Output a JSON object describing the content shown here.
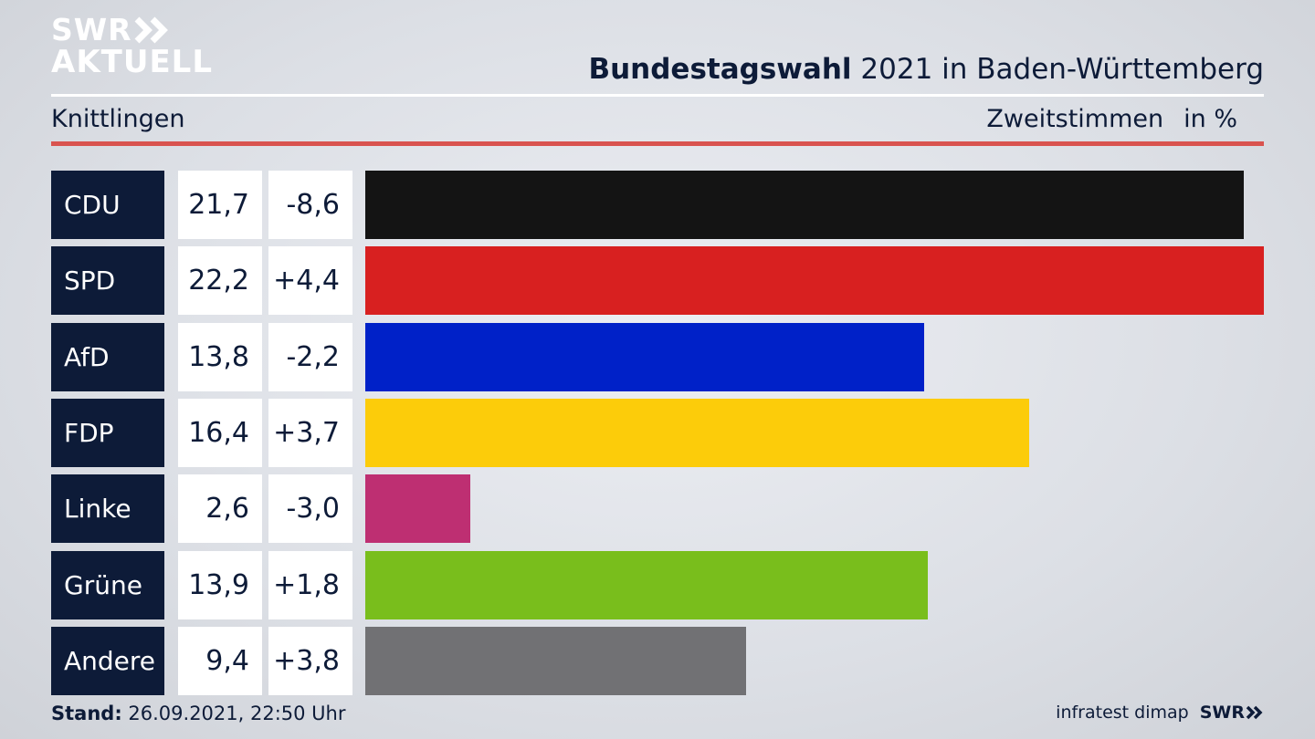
{
  "brand": {
    "logo_line1": "SWR",
    "logo_line2": "AKTUELL",
    "footer_brand": "SWR",
    "source": "infratest dimap"
  },
  "header": {
    "title_bold": "Bundestagswahl",
    "title_rest": " 2021 in Baden-Württemberg",
    "location": "Knittlingen",
    "measure": "Zweitstimmen",
    "unit": "in %"
  },
  "footer": {
    "stand_label": "Stand:",
    "stand_value": " 26.09.2021, 22:50 Uhr"
  },
  "colors": {
    "navy": "#0d1b38",
    "accent_rule": "#d9534f"
  },
  "chart_data": {
    "type": "bar",
    "orientation": "horizontal",
    "categories": [
      "CDU",
      "SPD",
      "AfD",
      "FDP",
      "Linke",
      "Grüne",
      "Andere"
    ],
    "values_label": [
      "21,7",
      "22,2",
      "13,8",
      "16,4",
      "2,6",
      "13,9",
      "9,4"
    ],
    "diff_label": [
      "-8,6",
      "+4,4",
      "-2,2",
      "+3,7",
      "-3,0",
      "+1,8",
      "+3,8"
    ],
    "values": [
      21.7,
      22.2,
      13.8,
      16.4,
      2.6,
      13.9,
      9.4
    ],
    "diff": [
      -8.6,
      4.4,
      -2.2,
      3.7,
      -3.0,
      1.8,
      3.8
    ],
    "bar_colors": [
      "#141414",
      "#d82020",
      "#0021c8",
      "#fccc0a",
      "#be2f72",
      "#79be1c",
      "#717174"
    ],
    "xlim": [
      0,
      22.2
    ]
  }
}
